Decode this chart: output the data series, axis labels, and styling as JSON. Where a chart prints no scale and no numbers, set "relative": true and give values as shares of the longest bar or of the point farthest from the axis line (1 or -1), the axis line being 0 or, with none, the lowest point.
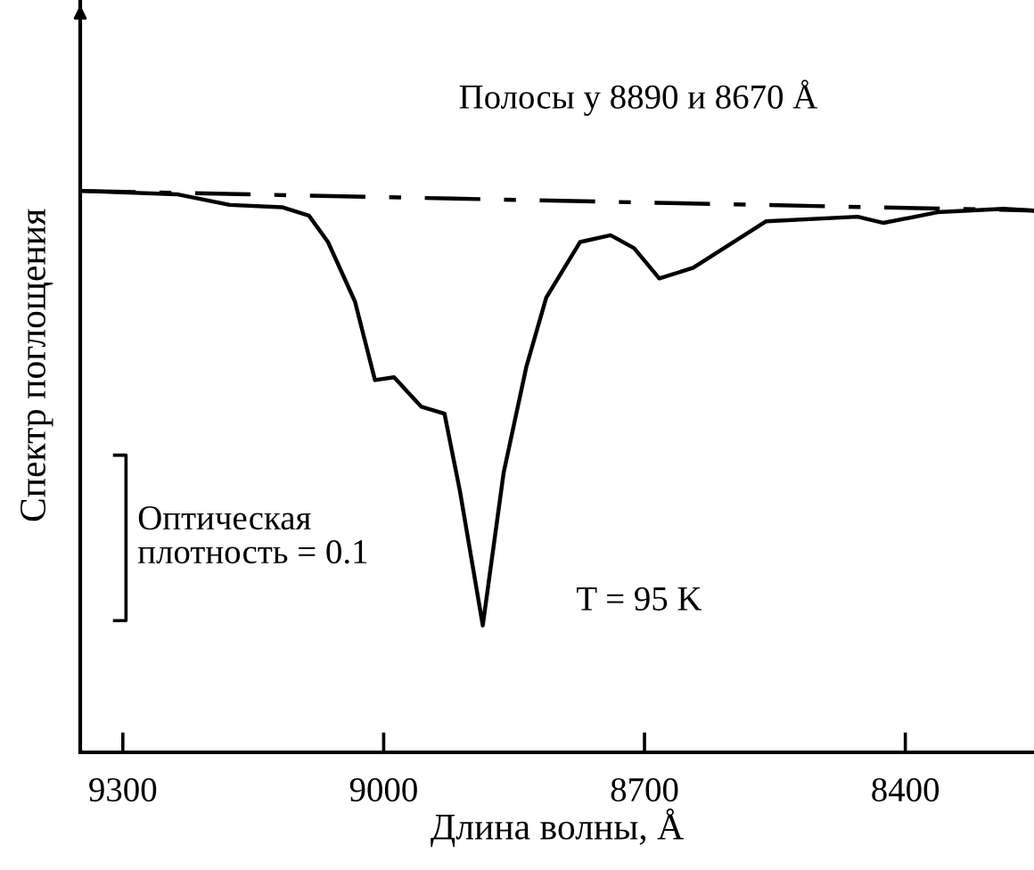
{
  "chart_data": {
    "type": "line",
    "title": "Полосы у 8890 и 8670 Å",
    "xlabel": "Длина волны, Å",
    "ylabel": "Спектр поглощения",
    "annotations": [
      "Оптическая\nплотность = 0.1",
      "T = 95 K"
    ],
    "relative": true,
    "xlim": [
      9349,
      8252
    ],
    "xticks": [
      9300,
      9000,
      8700,
      8400
    ],
    "grid": false,
    "legend": false,
    "marker": "none",
    "series": [
      {
        "color": "#000000",
        "line_style": "solid",
        "x": [
          9349,
          9238,
          9177,
          9117,
          9086,
          9064,
          9033,
          9010,
          8988,
          8957,
          8930,
          8912,
          8886,
          8862,
          8836,
          8813,
          8774,
          8739,
          8712,
          8683,
          8644,
          8560,
          8455,
          8425,
          8363,
          8287,
          8252
        ],
        "values": [
          1.0,
          0.994,
          0.975,
          0.971,
          0.956,
          0.909,
          0.803,
          0.663,
          0.668,
          0.616,
          0.603,
          0.463,
          0.226,
          0.498,
          0.686,
          0.81,
          0.909,
          0.921,
          0.898,
          0.844,
          0.863,
          0.946,
          0.954,
          0.943,
          0.962,
          0.968,
          0.965
        ]
      },
      {
        "color": "#000000",
        "line_style": "dashdot",
        "x": [
          9349,
          8252
        ],
        "values": [
          1.0,
          0.965
        ]
      }
    ]
  }
}
